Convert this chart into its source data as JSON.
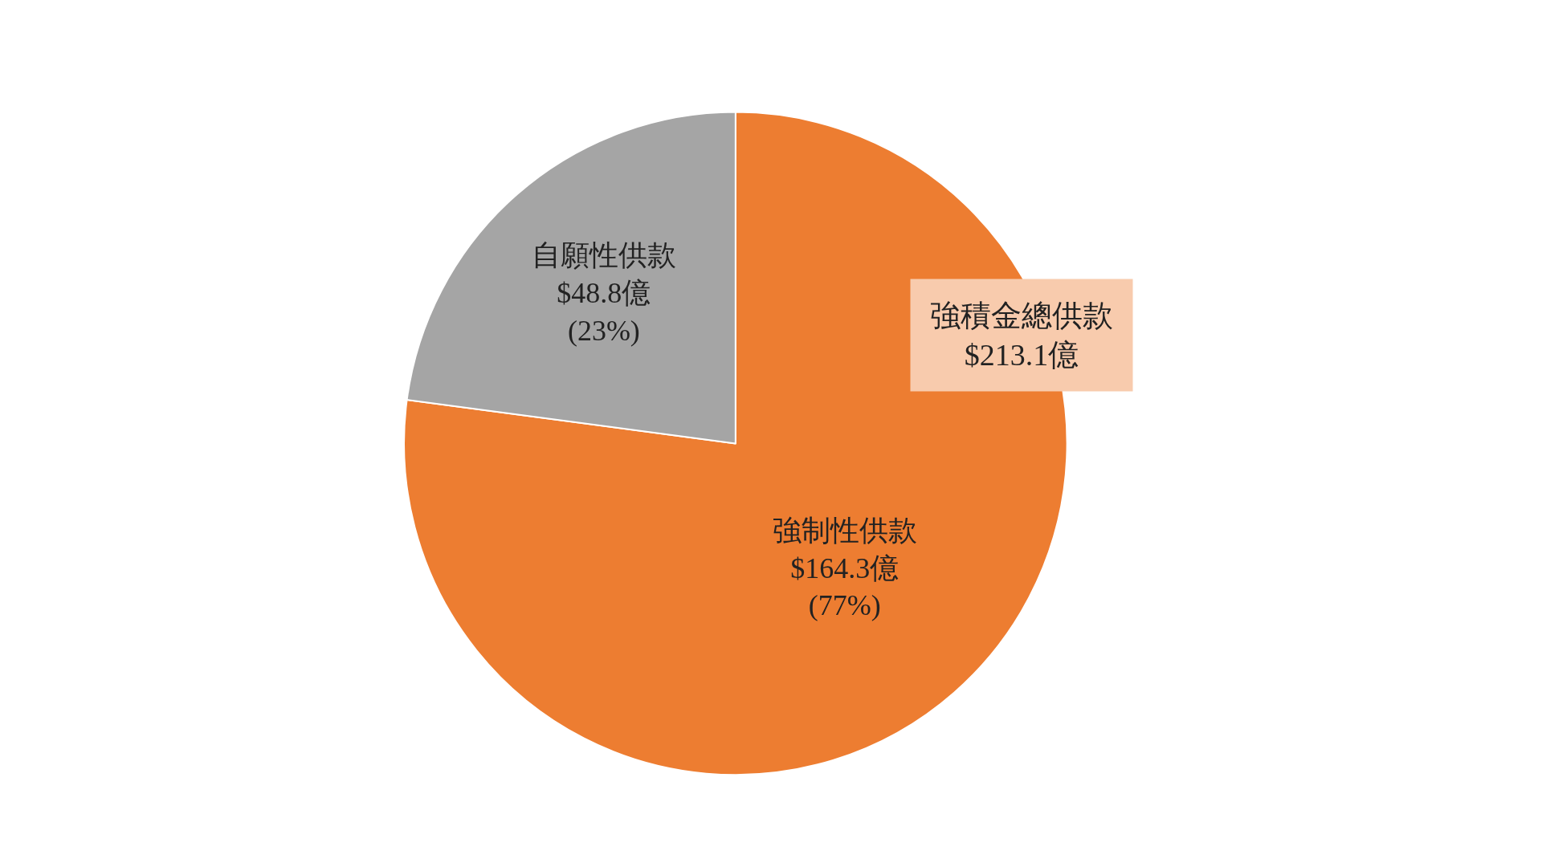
{
  "chart_data": {
    "type": "pie",
    "categories": [
      "強制性供款",
      "自願性供款"
    ],
    "values": [
      164.3,
      48.8
    ],
    "value_labels": [
      "$164.3億\n(77%)",
      "$48.8億\n(23%)"
    ],
    "colors": [
      "#ed7d31",
      "#a5a5a5"
    ],
    "annotations": [
      "強積金總供款\n$213.1億"
    ],
    "legend": false
  }
}
